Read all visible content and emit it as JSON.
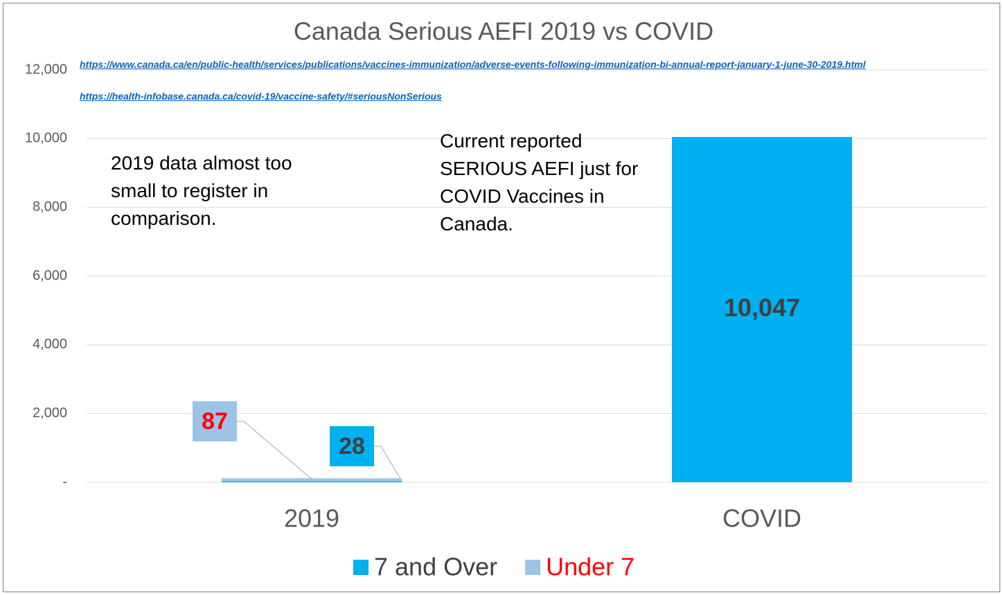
{
  "chart_data": {
    "type": "stacked_bar",
    "title": "Canada Serious AEFI  2019 vs COVID",
    "links": [
      "https://www.canada.ca/en/public-health/services/publications/vaccines-immunization/adverse-events-following-immunization-bi-annual-report-january-1-june-30-2019.html",
      "https://health-infobase.canada.ca/covid-19/vaccine-safety/#seriousNonSerious"
    ],
    "annotations": [
      "2019 data almost too small to register in comparison.",
      "Current reported SERIOUS AEFI just for COVID Vaccines in Canada."
    ],
    "categories": [
      "2019",
      "COVID"
    ],
    "series": [
      {
        "name": "7 and Over",
        "color": "#00b0f0",
        "label_color": "#404040",
        "values": [
          28,
          10047
        ],
        "value_labels": [
          "28",
          "10,047"
        ]
      },
      {
        "name": "Under 7",
        "color": "#9dc3e6",
        "label_color": "#ff0000",
        "values": [
          87,
          null
        ]
      }
    ],
    "ylim": [
      0,
      12000
    ],
    "yticks": [
      {
        "value": 0,
        "label": "-"
      },
      {
        "value": 2000,
        "label": "2,000"
      },
      {
        "value": 4000,
        "label": "4,000"
      },
      {
        "value": 6000,
        "label": "6,000"
      },
      {
        "value": 8000,
        "label": "8,000"
      },
      {
        "value": 10000,
        "label": "10,000"
      },
      {
        "value": 12000,
        "label": "12,000"
      }
    ],
    "grid": true,
    "legend": "bottom"
  }
}
